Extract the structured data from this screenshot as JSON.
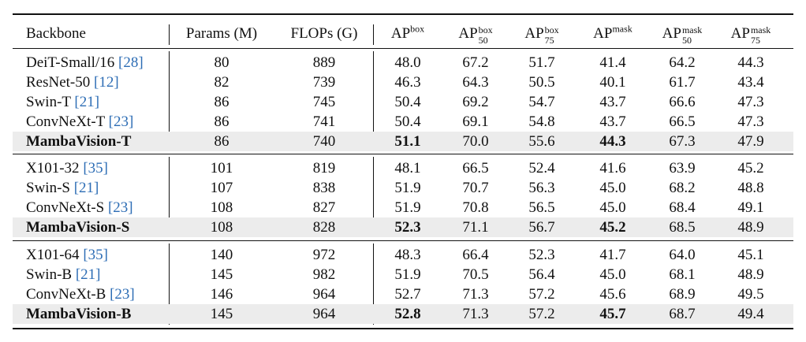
{
  "header": {
    "backbone": "Backbone",
    "params": "Params (M)",
    "flops": "FLOPs (G)",
    "ap": "AP",
    "sup_box": "box",
    "sup_mask": "mask",
    "sub_50": "50",
    "sub_75": "75"
  },
  "groups": [
    {
      "rows": [
        {
          "name": "DeiT-Small/16 ",
          "ref": "[28]",
          "params": "80",
          "flops": "889",
          "apb": "48.0",
          "apb50": "67.2",
          "apb75": "51.7",
          "apm": "41.4",
          "apm50": "64.2",
          "apm75": "44.3"
        },
        {
          "name": "ResNet-50 ",
          "ref": "[12]",
          "params": "82",
          "flops": "739",
          "apb": "46.3",
          "apb50": "64.3",
          "apb75": "50.5",
          "apm": "40.1",
          "apm50": "61.7",
          "apm75": "43.4"
        },
        {
          "name": "Swin-T ",
          "ref": "[21]",
          "params": "86",
          "flops": "745",
          "apb": "50.4",
          "apb50": "69.2",
          "apb75": "54.7",
          "apm": "43.7",
          "apm50": "66.6",
          "apm75": "47.3"
        },
        {
          "name": "ConvNeXt-T ",
          "ref": "[23]",
          "params": "86",
          "flops": "741",
          "apb": "50.4",
          "apb50": "69.1",
          "apb75": "54.8",
          "apm": "43.7",
          "apm50": "66.5",
          "apm75": "47.3"
        },
        {
          "name": "MambaVision-T",
          "ref": "",
          "params": "86",
          "flops": "740",
          "apb": "51.1",
          "apb50": "70.0",
          "apb75": "55.6",
          "apm": "44.3",
          "apm50": "67.3",
          "apm75": "47.9"
        }
      ]
    },
    {
      "rows": [
        {
          "name": "X101-32 ",
          "ref": "[35]",
          "params": "101",
          "flops": "819",
          "apb": "48.1",
          "apb50": "66.5",
          "apb75": "52.4",
          "apm": "41.6",
          "apm50": "63.9",
          "apm75": "45.2"
        },
        {
          "name": "Swin-S ",
          "ref": "[21]",
          "params": "107",
          "flops": "838",
          "apb": "51.9",
          "apb50": "70.7",
          "apb75": "56.3",
          "apm": "45.0",
          "apm50": "68.2",
          "apm75": "48.8"
        },
        {
          "name": "ConvNeXt-S ",
          "ref": "[23]",
          "params": "108",
          "flops": "827",
          "apb": "51.9",
          "apb50": "70.8",
          "apb75": "56.5",
          "apm": "45.0",
          "apm50": "68.4",
          "apm75": "49.1"
        },
        {
          "name": "MambaVision-S",
          "ref": "",
          "params": "108",
          "flops": "828",
          "apb": "52.3",
          "apb50": "71.1",
          "apb75": "56.7",
          "apm": "45.2",
          "apm50": "68.5",
          "apm75": "48.9"
        }
      ]
    },
    {
      "rows": [
        {
          "name": "X101-64 ",
          "ref": "[35]",
          "params": "140",
          "flops": "972",
          "apb": "48.3",
          "apb50": "66.4",
          "apb75": "52.3",
          "apm": "41.7",
          "apm50": "64.0",
          "apm75": "45.1"
        },
        {
          "name": "Swin-B ",
          "ref": "[21]",
          "params": "145",
          "flops": "982",
          "apb": "51.9",
          "apb50": "70.5",
          "apb75": "56.4",
          "apm": "45.0",
          "apm50": "68.1",
          "apm75": "48.9"
        },
        {
          "name": "ConvNeXt-B ",
          "ref": "[23]",
          "params": "146",
          "flops": "964",
          "apb": "52.7",
          "apb50": "71.3",
          "apb75": "57.2",
          "apm": "45.6",
          "apm50": "68.9",
          "apm75": "49.5"
        },
        {
          "name": "MambaVision-B",
          "ref": "",
          "params": "145",
          "flops": "964",
          "apb": "52.8",
          "apb50": "71.3",
          "apb75": "57.2",
          "apm": "45.7",
          "apm50": "68.7",
          "apm75": "49.4"
        }
      ]
    }
  ]
}
